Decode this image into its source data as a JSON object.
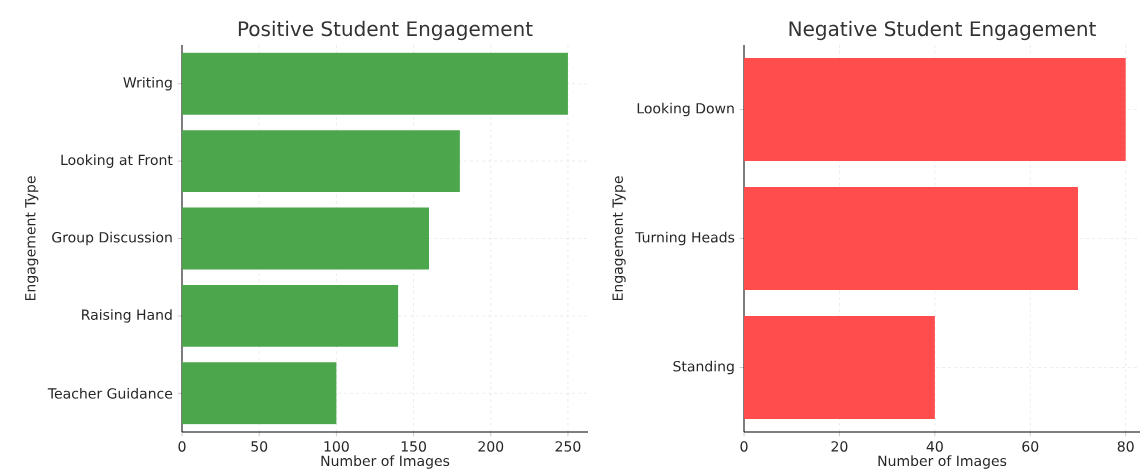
{
  "chart_data": [
    {
      "type": "bar",
      "orientation": "horizontal",
      "title": "Positive Student Engagement",
      "xlabel": "Number of Images",
      "ylabel": "Engagement Type",
      "categories": [
        "Writing",
        "Looking at Front",
        "Group Discussion",
        "Raising Hand",
        "Teacher Guidance"
      ],
      "values": [
        250,
        180,
        160,
        140,
        100
      ],
      "color": "#4ca64c",
      "xlim": [
        0,
        263
      ],
      "xticks": [
        0,
        50,
        100,
        150,
        200,
        250
      ],
      "grid": true
    },
    {
      "type": "bar",
      "orientation": "horizontal",
      "title": "Negative Student Engagement",
      "xlabel": "Number of Images",
      "ylabel": "Engagement Type",
      "categories": [
        "Looking Down",
        "Turning Heads",
        "Standing"
      ],
      "values": [
        80,
        70,
        40
      ],
      "color": "#ff4c4c",
      "xlim": [
        0,
        83
      ],
      "xticks": [
        0,
        20,
        40,
        60,
        80
      ],
      "grid": true
    }
  ]
}
